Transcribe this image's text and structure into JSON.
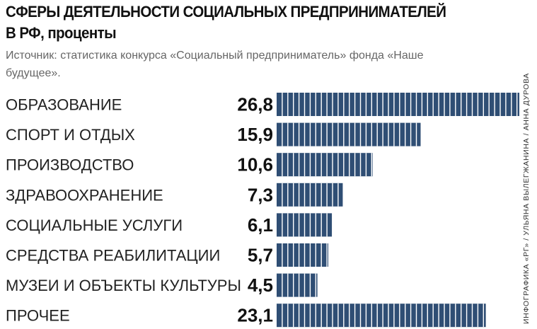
{
  "header": {
    "title": "СФЕРЫ ДЕЯТЕЛЬНОСТИ СОЦИАЛЬНЫХ ПРЕДПРИНИМАТЕЛЕЙ",
    "subtitle": "В РФ, проценты",
    "source": "Источник: статистика конкурса «Социальный предприниматель» фонда «Наше будущее»."
  },
  "credit": "ИНФОГРАФИКА «РГ» / УЛЬЯНА ВЫЛЕГЖАНИНА / АННА ДУРОВА",
  "colors": {
    "bar": "#2f4e74",
    "stripe": "#ffffff"
  },
  "chart_data": {
    "type": "bar",
    "orientation": "horizontal",
    "categories": [
      "ОБРАЗОВАНИЕ",
      "СПОРТ И ОТДЫХ",
      "ПРОИЗВОДСТВО",
      "ЗДРАВООХРАНЕНИЕ",
      "СОЦИАЛЬНЫЕ УСЛУГИ",
      "СРЕДСТВА РЕАБИЛИТАЦИИ",
      "МУЗЕИ И ОБЪЕКТЫ КУЛЬТУРЫ",
      "ПРОЧЕЕ"
    ],
    "values": [
      26.8,
      15.9,
      10.6,
      7.3,
      6.1,
      5.7,
      4.5,
      23.1
    ],
    "value_labels": [
      "26,8",
      "15,9",
      "10,6",
      "7,3",
      "6,1",
      "5,7",
      "4,5",
      "23,1"
    ],
    "title": "СФЕРЫ ДЕЯТЕЛЬНОСТИ СОЦИАЛЬНЫХ ПРЕДПРИНИМАТЕЛЕЙ",
    "subtitle": "В РФ, проценты",
    "xlim": [
      0,
      26.8
    ],
    "grid": false,
    "legend": "none"
  }
}
